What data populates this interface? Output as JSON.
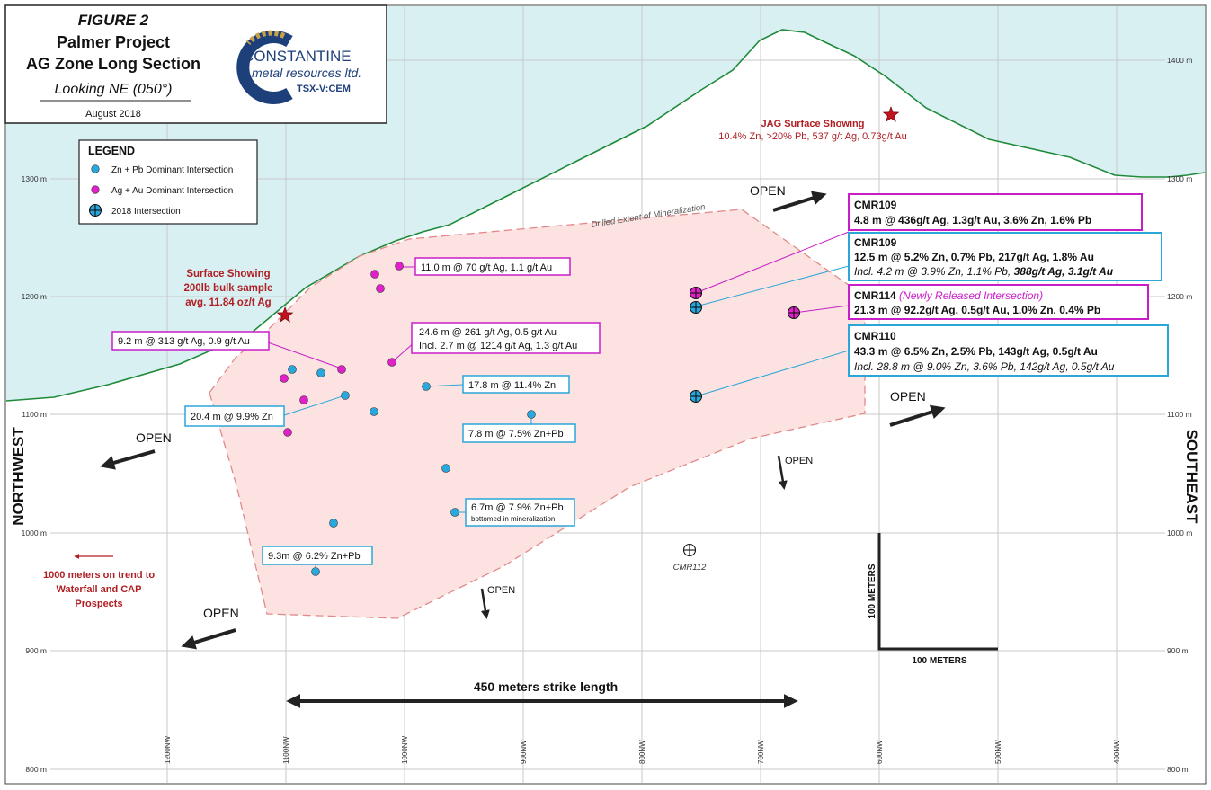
{
  "colors": {
    "sky": "#d9f0f3",
    "surface_line": "#1f8a3a",
    "grid": "#c8c8c8",
    "zone_fill": "#fde2e2",
    "zone_edge": "#e08a8a",
    "blue_dot": "#29a8dd",
    "magenta_dot": "#e020c8",
    "magenta_box": "#c81ec8",
    "blue_box": "#2aa6d8",
    "red_text": "#b01e23",
    "star": "#c1121f"
  },
  "title": {
    "figure": "FIGURE 2",
    "line1": "Palmer Project",
    "line2": "AG Zone Long Section",
    "line3": "Looking NE (050°)",
    "date": "August 2018"
  },
  "logo": {
    "name": "CONSTANTINE",
    "sub": "metal resources ltd.",
    "ticker": "TSX-V:CEM"
  },
  "legend": {
    "heading": "LEGEND",
    "items": [
      {
        "label": "Zn + Pb Dominant Intersection",
        "icon": "blue-dot"
      },
      {
        "label": "Ag + Au Dominant Intersection",
        "icon": "magenta-dot"
      },
      {
        "label": "2018 Intersection",
        "icon": "crosshair-circle"
      }
    ]
  },
  "elevation_labels": [
    "1400 m",
    "1300 m",
    "1200 m",
    "1100 m",
    "1000 m",
    "900 m",
    "800 m"
  ],
  "section_labels": [
    "1200NW",
    "1100NW",
    "1000NW",
    "900NW",
    "800NW",
    "700NW",
    "600NW",
    "500NW",
    "400NW"
  ],
  "side_labels": {
    "left": "NORTHWEST",
    "right": "SOUTHEAST"
  },
  "zone_label": "Drilled Extent of Mineralization",
  "open_label": "OPEN",
  "jag": {
    "title": "JAG Surface Showing",
    "detail": "10.4% Zn, >20% Pb, 537 g/t Ag, 0.73g/t Au"
  },
  "surface_showing": {
    "line1": "Surface Showing",
    "line2": "200lb bulk sample",
    "line3": "avg. 11.84 oz/t Ag"
  },
  "trend_note": {
    "line1": "1000 meters on trend to",
    "line2": "Waterfall and CAP",
    "line3": "Prospects"
  },
  "strike_length": "450 meters strike length",
  "scale": {
    "vertical": "100 METERS",
    "horizontal": "100 METERS"
  },
  "cmr112": "CMR112",
  "small_callouts": {
    "c1": "11.0 m @ 70 g/t Ag, 1.1 g/t Au",
    "c2a": "24.6 m @ 261 g/t Ag, 0.5 g/t Au",
    "c2b": "Incl. 2.7 m @ 1214 g/t Ag, 1.3 g/t Au",
    "c3": "9.2 m @ 313 g/t Ag, 0.9 g/t Au",
    "c4": "17.8 m @ 11.4% Zn",
    "c5": "20.4 m @ 9.9% Zn",
    "c6": "7.8 m @ 7.5% Zn+Pb",
    "c7a": "6.7m @ 7.9% Zn+Pb",
    "c7b": "bottomed in mineralization",
    "c8": "9.3m @ 6.2% Zn+Pb"
  },
  "big_callouts": {
    "cmr109a": {
      "hole": "CMR109",
      "line1": "4.8 m @ 436g/t Ag, 1.3g/t Au, 3.6% Zn, 1.6% Pb"
    },
    "cmr109b": {
      "hole": "CMR109",
      "line1": "12.5 m @ 5.2% Zn, 0.7% Pb, 217g/t Ag, 1.8% Au",
      "line2a": "Incl. 4.2 m @ 3.9% Zn, 1.1% Pb, ",
      "line2b": "388g/t Ag, 3.1g/t Au"
    },
    "cmr114": {
      "hole": "CMR114",
      "tag": "(Newly Released Intersection)",
      "line1": "21.3 m @ 92.2g/t Ag, 0.5g/t Au, 1.0% Zn, 0.4% Pb"
    },
    "cmr110": {
      "hole": "CMR110",
      "line1": "43.3 m @ 6.5% Zn, 2.5% Pb, 143g/t Ag, 0.5g/t Au",
      "line2": "Incl. 28.8 m @ 9.0% Zn, 3.6% Pb, 142g/t Ag, 0.5g/t Au"
    }
  }
}
